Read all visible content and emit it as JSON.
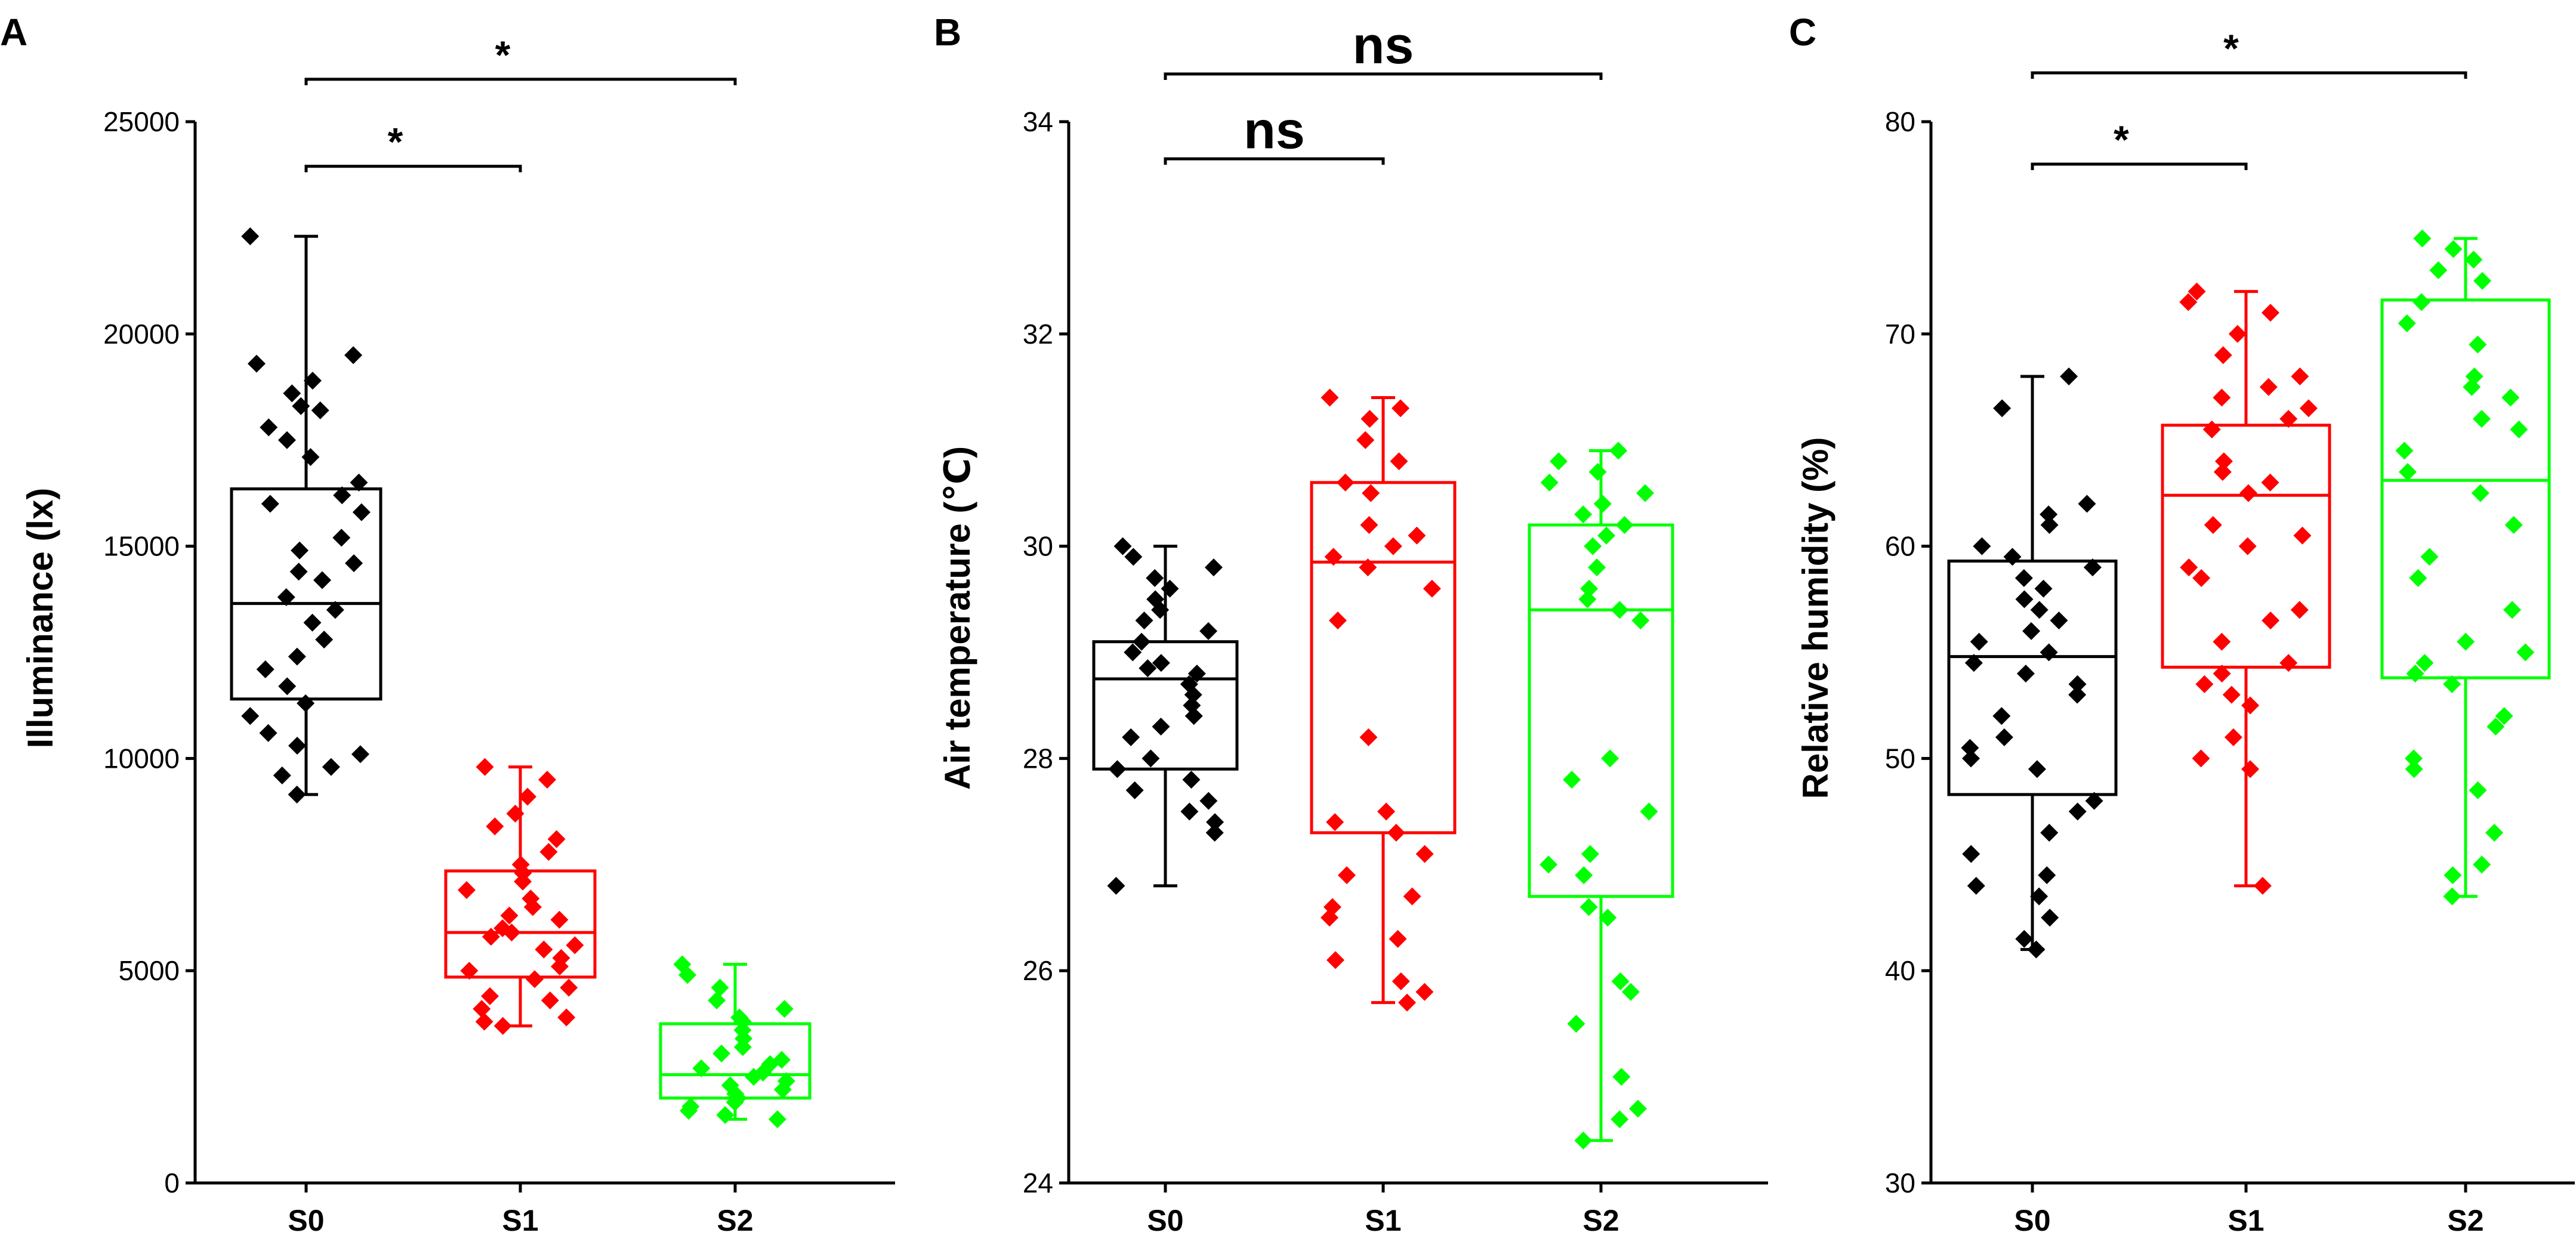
{
  "chart_data": [
    {
      "type": "box",
      "panel": "A",
      "ylabel": "Illuminance (lx)",
      "ylim": [
        0,
        25000
      ],
      "yticks": [
        "0",
        "5000",
        "10000",
        "15000",
        "20000",
        "25000"
      ],
      "ytick_values": [
        0,
        5000,
        10000,
        15000,
        20000,
        25000
      ],
      "categories": [
        "S0",
        "S1",
        "S2"
      ],
      "colors": [
        "#000000",
        "#ff0000",
        "#00ff00"
      ],
      "boxes": [
        {
          "name": "S0",
          "whisker_low": 9150,
          "q1": 11400,
          "median": 13650,
          "q3": 16350,
          "whisker_high": 22300,
          "points": [
            22300,
            19500,
            19300,
            18900,
            18600,
            18300,
            18200,
            17800,
            17500,
            17100,
            16500,
            16200,
            16000,
            15800,
            15200,
            14900,
            14600,
            14400,
            14200,
            13800,
            13500,
            13200,
            12800,
            12400,
            12100,
            11700,
            11300,
            11000,
            10600,
            10300,
            10100,
            9800,
            9600,
            9150
          ]
        },
        {
          "name": "S1",
          "whisker_low": 3700,
          "q1": 4850,
          "median": 5900,
          "q3": 7350,
          "whisker_high": 9800,
          "points": [
            9800,
            9500,
            9100,
            8700,
            8400,
            8100,
            7800,
            7500,
            7300,
            7100,
            6900,
            6700,
            6500,
            6300,
            6200,
            6000,
            5900,
            5800,
            5600,
            5500,
            5300,
            5100,
            5000,
            4800,
            4600,
            4400,
            4300,
            4100,
            3900,
            3800,
            3700
          ]
        },
        {
          "name": "S2",
          "whisker_low": 1500,
          "q1": 2000,
          "median": 2550,
          "q3": 3750,
          "whisker_high": 5150,
          "points": [
            5150,
            4900,
            4600,
            4300,
            4100,
            3900,
            3800,
            3600,
            3400,
            3200,
            3050,
            2900,
            2800,
            2700,
            2600,
            2500,
            2400,
            2300,
            2200,
            2100,
            2000,
            1900,
            1800,
            1700,
            1600,
            1500
          ]
        }
      ],
      "comparisons": [
        {
          "from": "S0",
          "to": "S1",
          "label": "*",
          "level": 23950
        },
        {
          "from": "S0",
          "to": "S2",
          "label": "*",
          "level": 26000
        }
      ]
    },
    {
      "type": "box",
      "panel": "B",
      "ylabel": "Air temperature (℃)",
      "ylim": [
        24,
        34
      ],
      "yticks": [
        "24",
        "26",
        "28",
        "30",
        "32",
        "34"
      ],
      "ytick_values": [
        24,
        26,
        28,
        30,
        32,
        34
      ],
      "categories": [
        "S0",
        "S1",
        "S2"
      ],
      "colors": [
        "#000000",
        "#ff0000",
        "#00ff00"
      ],
      "boxes": [
        {
          "name": "S0",
          "whisker_low": 26.8,
          "q1": 27.9,
          "median": 28.75,
          "q3": 29.1,
          "whisker_high": 30.0,
          "points": [
            30.0,
            29.9,
            29.8,
            29.7,
            29.6,
            29.5,
            29.4,
            29.3,
            29.2,
            29.1,
            29.0,
            28.9,
            28.85,
            28.8,
            28.7,
            28.6,
            28.5,
            28.4,
            28.3,
            28.2,
            28.0,
            27.9,
            27.8,
            27.7,
            27.6,
            27.5,
            27.4,
            27.3,
            26.8
          ]
        },
        {
          "name": "S1",
          "whisker_low": 25.7,
          "q1": 27.3,
          "median": 29.85,
          "q3": 30.6,
          "whisker_high": 31.4,
          "points": [
            31.4,
            31.3,
            31.2,
            31.0,
            30.8,
            30.6,
            30.5,
            30.2,
            30.1,
            30.0,
            29.9,
            29.8,
            29.6,
            29.3,
            28.2,
            27.5,
            27.4,
            27.3,
            27.1,
            26.9,
            26.7,
            26.6,
            26.5,
            26.3,
            26.1,
            25.9,
            25.8,
            25.7
          ]
        },
        {
          "name": "S2",
          "whisker_low": 24.4,
          "q1": 26.7,
          "median": 29.4,
          "q3": 30.2,
          "whisker_high": 30.9,
          "points": [
            30.9,
            30.8,
            30.7,
            30.6,
            30.5,
            30.4,
            30.3,
            30.2,
            30.1,
            30.0,
            29.8,
            29.6,
            29.5,
            29.4,
            29.3,
            28.0,
            27.8,
            27.5,
            27.1,
            27.0,
            26.9,
            26.6,
            26.5,
            25.9,
            25.8,
            25.5,
            25.0,
            24.7,
            24.6,
            24.4
          ]
        }
      ],
      "comparisons": [
        {
          "from": "S0",
          "to": "S1",
          "label": "ns",
          "level": 33.65
        },
        {
          "from": "S0",
          "to": "S2",
          "label": "ns",
          "level": 34.45
        }
      ]
    },
    {
      "type": "box",
      "panel": "C",
      "ylabel": "Relative humidity (%)",
      "ylim": [
        30,
        80
      ],
      "yticks": [
        "30",
        "40",
        "50",
        "60",
        "70",
        "80"
      ],
      "ytick_values": [
        30,
        40,
        50,
        60,
        70,
        80
      ],
      "categories": [
        "S0",
        "S1",
        "S2"
      ],
      "colors": [
        "#000000",
        "#ff0000",
        "#00ff00"
      ],
      "boxes": [
        {
          "name": "S0",
          "whisker_low": 41.0,
          "q1": 48.3,
          "median": 54.8,
          "q3": 59.3,
          "whisker_high": 68.0,
          "points": [
            68.0,
            66.5,
            62.0,
            61.5,
            61.0,
            60.0,
            59.5,
            59.0,
            58.5,
            58.0,
            57.5,
            57.0,
            56.5,
            56.0,
            55.5,
            55.0,
            54.5,
            54.0,
            53.5,
            53.0,
            52.0,
            51.0,
            50.5,
            50.0,
            49.5,
            48.0,
            47.5,
            46.5,
            45.5,
            44.5,
            44.0,
            43.5,
            42.5,
            41.5,
            41.0
          ]
        },
        {
          "name": "S1",
          "whisker_low": 44.0,
          "q1": 54.3,
          "median": 62.4,
          "q3": 65.7,
          "whisker_high": 72.0,
          "points": [
            72.0,
            71.5,
            71.0,
            70.0,
            69.0,
            68.0,
            67.5,
            67.0,
            66.5,
            66.0,
            65.5,
            64.0,
            63.5,
            63.0,
            62.5,
            61.0,
            60.5,
            60.0,
            59.0,
            58.5,
            57.0,
            56.5,
            55.5,
            54.5,
            54.0,
            53.5,
            53.0,
            52.5,
            51.0,
            50.0,
            49.5,
            44.0
          ]
        },
        {
          "name": "S2",
          "whisker_low": 43.5,
          "q1": 53.8,
          "median": 63.1,
          "q3": 71.6,
          "whisker_high": 74.5,
          "points": [
            74.5,
            74.0,
            73.5,
            73.0,
            72.5,
            71.5,
            70.5,
            69.5,
            68.0,
            67.5,
            67.0,
            66.0,
            65.5,
            64.5,
            63.5,
            62.5,
            61.0,
            59.5,
            58.5,
            57.0,
            55.5,
            55.0,
            54.5,
            54.0,
            53.5,
            52.0,
            51.5,
            50.0,
            49.5,
            48.5,
            46.5,
            45.0,
            44.5,
            43.5
          ]
        }
      ],
      "comparisons": [
        {
          "from": "S0",
          "to": "S1",
          "label": "*",
          "level": 78.0
        },
        {
          "from": "S0",
          "to": "S2",
          "label": "*",
          "level": 82.3
        }
      ]
    }
  ]
}
